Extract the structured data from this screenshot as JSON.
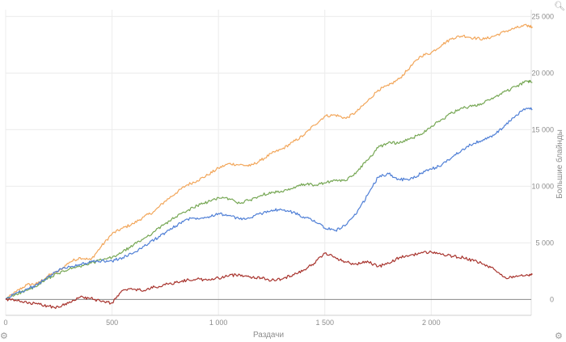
{
  "chart_data": {
    "type": "line",
    "title": "",
    "xlabel": "Раздачи",
    "ylabel": "Большие блайнды",
    "xlim": [
      0,
      2470
    ],
    "ylim": [
      -1400,
      25600
    ],
    "x_ticks": [
      0,
      500,
      1000,
      1500,
      2000
    ],
    "x_tick_labels": [
      "0",
      "500",
      "1 000",
      "1 500",
      "2 000"
    ],
    "y_ticks": [
      0,
      5000,
      10000,
      15000,
      20000,
      25000
    ],
    "y_tick_labels": [
      "0",
      "5 000",
      "10 000",
      "15 000",
      "20 000",
      "25 000"
    ],
    "grid": true,
    "legend": "none",
    "y_axis_position": "right",
    "series": [
      {
        "color": "#f2a65a",
        "points": [
          [
            0,
            0
          ],
          [
            50,
            700
          ],
          [
            100,
            1300
          ],
          [
            150,
            1400
          ],
          [
            200,
            2100
          ],
          [
            250,
            2500
          ],
          [
            300,
            3300
          ],
          [
            350,
            3700
          ],
          [
            400,
            3500
          ],
          [
            450,
            4700
          ],
          [
            500,
            5800
          ],
          [
            550,
            6300
          ],
          [
            600,
            6700
          ],
          [
            650,
            7300
          ],
          [
            700,
            7800
          ],
          [
            750,
            8700
          ],
          [
            800,
            9400
          ],
          [
            850,
            10100
          ],
          [
            900,
            10500
          ],
          [
            950,
            11000
          ],
          [
            1000,
            11600
          ],
          [
            1050,
            12000
          ],
          [
            1100,
            11900
          ],
          [
            1150,
            11800
          ],
          [
            1200,
            12300
          ],
          [
            1250,
            12900
          ],
          [
            1300,
            13300
          ],
          [
            1350,
            13900
          ],
          [
            1400,
            14500
          ],
          [
            1450,
            15400
          ],
          [
            1500,
            16200
          ],
          [
            1550,
            16300
          ],
          [
            1600,
            16000
          ],
          [
            1650,
            16600
          ],
          [
            1700,
            17500
          ],
          [
            1750,
            18500
          ],
          [
            1800,
            18900
          ],
          [
            1850,
            19500
          ],
          [
            1900,
            20500
          ],
          [
            1950,
            21500
          ],
          [
            2000,
            21800
          ],
          [
            2050,
            22500
          ],
          [
            2100,
            23100
          ],
          [
            2150,
            23300
          ],
          [
            2200,
            23100
          ],
          [
            2250,
            23000
          ],
          [
            2300,
            23300
          ],
          [
            2350,
            23700
          ],
          [
            2400,
            24000
          ],
          [
            2450,
            24200
          ],
          [
            2475,
            24100
          ]
        ]
      },
      {
        "color": "#76a754",
        "points": [
          [
            0,
            0
          ],
          [
            50,
            500
          ],
          [
            100,
            800
          ],
          [
            150,
            1200
          ],
          [
            200,
            1900
          ],
          [
            250,
            2300
          ],
          [
            300,
            2700
          ],
          [
            350,
            2900
          ],
          [
            400,
            3200
          ],
          [
            450,
            3500
          ],
          [
            500,
            3700
          ],
          [
            550,
            4200
          ],
          [
            600,
            4800
          ],
          [
            650,
            5400
          ],
          [
            700,
            6000
          ],
          [
            750,
            6700
          ],
          [
            800,
            7300
          ],
          [
            850,
            7800
          ],
          [
            900,
            8300
          ],
          [
            950,
            8600
          ],
          [
            1000,
            9000
          ],
          [
            1050,
            8900
          ],
          [
            1100,
            8500
          ],
          [
            1150,
            8800
          ],
          [
            1200,
            9200
          ],
          [
            1250,
            9500
          ],
          [
            1300,
            9500
          ],
          [
            1350,
            9800
          ],
          [
            1400,
            10200
          ],
          [
            1450,
            10100
          ],
          [
            1500,
            10300
          ],
          [
            1550,
            10500
          ],
          [
            1600,
            10500
          ],
          [
            1650,
            11300
          ],
          [
            1700,
            12300
          ],
          [
            1750,
            13400
          ],
          [
            1800,
            13900
          ],
          [
            1850,
            13800
          ],
          [
            1900,
            14200
          ],
          [
            1950,
            14600
          ],
          [
            2000,
            15300
          ],
          [
            2050,
            15900
          ],
          [
            2100,
            16500
          ],
          [
            2150,
            16900
          ],
          [
            2200,
            17100
          ],
          [
            2250,
            17400
          ],
          [
            2300,
            17900
          ],
          [
            2350,
            18400
          ],
          [
            2400,
            18800
          ],
          [
            2450,
            19300
          ],
          [
            2475,
            19200
          ]
        ]
      },
      {
        "color": "#4f7fd6",
        "points": [
          [
            0,
            0
          ],
          [
            50,
            600
          ],
          [
            100,
            900
          ],
          [
            150,
            1300
          ],
          [
            200,
            2000
          ],
          [
            250,
            2600
          ],
          [
            300,
            2900
          ],
          [
            350,
            3100
          ],
          [
            400,
            3300
          ],
          [
            450,
            3400
          ],
          [
            500,
            3400
          ],
          [
            550,
            3700
          ],
          [
            600,
            4100
          ],
          [
            650,
            4700
          ],
          [
            700,
            5300
          ],
          [
            750,
            5900
          ],
          [
            800,
            6500
          ],
          [
            850,
            7100
          ],
          [
            900,
            7200
          ],
          [
            950,
            7300
          ],
          [
            1000,
            7600
          ],
          [
            1050,
            7400
          ],
          [
            1100,
            7100
          ],
          [
            1150,
            7200
          ],
          [
            1200,
            7600
          ],
          [
            1250,
            7900
          ],
          [
            1300,
            7900
          ],
          [
            1350,
            7700
          ],
          [
            1400,
            7300
          ],
          [
            1450,
            7000
          ],
          [
            1500,
            6300
          ],
          [
            1550,
            6100
          ],
          [
            1600,
            6600
          ],
          [
            1650,
            7600
          ],
          [
            1700,
            9200
          ],
          [
            1750,
            10800
          ],
          [
            1800,
            11100
          ],
          [
            1850,
            10600
          ],
          [
            1900,
            10600
          ],
          [
            1950,
            11100
          ],
          [
            2000,
            11500
          ],
          [
            2050,
            11900
          ],
          [
            2100,
            12600
          ],
          [
            2150,
            13300
          ],
          [
            2200,
            13800
          ],
          [
            2250,
            14100
          ],
          [
            2300,
            14600
          ],
          [
            2350,
            15400
          ],
          [
            2400,
            16300
          ],
          [
            2450,
            16900
          ],
          [
            2475,
            16800
          ]
        ]
      },
      {
        "color": "#a8342e",
        "points": [
          [
            0,
            0
          ],
          [
            50,
            -100
          ],
          [
            100,
            -300
          ],
          [
            150,
            -400
          ],
          [
            200,
            -600
          ],
          [
            250,
            -700
          ],
          [
            300,
            -200
          ],
          [
            350,
            200
          ],
          [
            400,
            100
          ],
          [
            450,
            -200
          ],
          [
            500,
            -300
          ],
          [
            550,
            800
          ],
          [
            600,
            900
          ],
          [
            650,
            800
          ],
          [
            700,
            1100
          ],
          [
            750,
            1300
          ],
          [
            800,
            1500
          ],
          [
            850,
            1700
          ],
          [
            900,
            1800
          ],
          [
            950,
            1700
          ],
          [
            1000,
            1900
          ],
          [
            1050,
            2100
          ],
          [
            1100,
            2200
          ],
          [
            1150,
            2000
          ],
          [
            1200,
            1900
          ],
          [
            1250,
            1700
          ],
          [
            1300,
            1800
          ],
          [
            1350,
            2200
          ],
          [
            1400,
            2600
          ],
          [
            1450,
            3200
          ],
          [
            1500,
            4100
          ],
          [
            1550,
            3700
          ],
          [
            1600,
            3300
          ],
          [
            1650,
            3100
          ],
          [
            1700,
            3400
          ],
          [
            1750,
            2900
          ],
          [
            1800,
            3200
          ],
          [
            1850,
            3700
          ],
          [
            1900,
            3900
          ],
          [
            1950,
            4100
          ],
          [
            2000,
            4200
          ],
          [
            2050,
            4000
          ],
          [
            2100,
            3800
          ],
          [
            2150,
            3700
          ],
          [
            2200,
            3400
          ],
          [
            2250,
            3100
          ],
          [
            2300,
            2600
          ],
          [
            2350,
            1900
          ],
          [
            2400,
            2100
          ],
          [
            2450,
            2200
          ],
          [
            2475,
            2200
          ]
        ]
      }
    ]
  },
  "icons": {
    "top_right": "magnifier-icon",
    "bottom_left": "settings-icon",
    "bottom_right": "settings-icon"
  }
}
